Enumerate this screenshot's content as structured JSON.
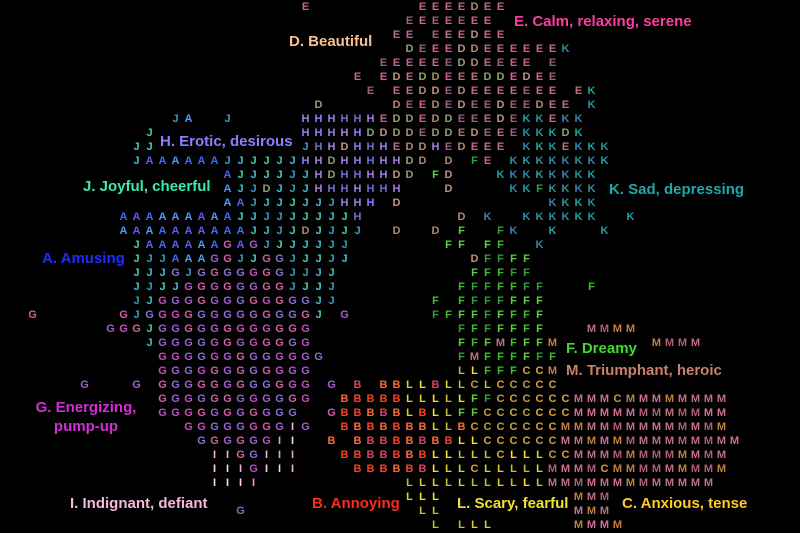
{
  "chart_data": {
    "type": "scatter",
    "title": "",
    "xlabel": "",
    "ylabel": "",
    "grid": false,
    "marker": "category letter",
    "categories": [
      {
        "letter": "A",
        "label": "A. Amusing",
        "color": "#1f2bff",
        "point_colors": [
          "#3a6cff",
          "#4a9cff",
          "#5a5aff"
        ],
        "center": [
          24,
          41
        ],
        "spread": [
          4,
          4
        ],
        "count": 40
      },
      {
        "letter": "B",
        "label": "B. Annoying",
        "color": "#ff2a1a",
        "point_colors": [
          "#ff4020",
          "#ff6a30",
          "#e04060"
        ],
        "center": [
          48,
          81
        ],
        "spread": [
          3.5,
          4
        ],
        "count": 45
      },
      {
        "letter": "C",
        "label": "C. Anxious, tense",
        "color": "#ffcc22",
        "point_colors": [
          "#d0b030",
          "#e0a030",
          "#c0a040"
        ],
        "center": [
          66,
          79
        ],
        "spread": [
          4,
          4
        ],
        "count": 40
      },
      {
        "letter": "D",
        "label": "D. Beautiful",
        "color": "#f7c08c",
        "point_colors": [
          "#b08a70",
          "#90a070",
          "#c09080"
        ],
        "center": [
          54,
          24
        ],
        "spread": [
          6,
          9
        ],
        "count": 55
      },
      {
        "letter": "E",
        "label": "E. Calm, relaxing, serene",
        "color": "#ff3d9e",
        "point_colors": [
          "#d06090",
          "#c07080",
          "#a06080"
        ],
        "center": [
          58,
          14
        ],
        "spread": [
          6,
          9
        ],
        "count": 90
      },
      {
        "letter": "F",
        "label": "F. Dreamy",
        "color": "#3ddd2a",
        "point_colors": [
          "#40c030",
          "#30a040",
          "#60d040"
        ],
        "center": [
          61,
          58
        ],
        "spread": [
          4,
          9
        ],
        "count": 70
      },
      {
        "letter": "G",
        "label": "G. Energizing, pump-up",
        "color": "#d12ed6",
        "point_colors": [
          "#a060d0",
          "#c050c0",
          "#8a70d0",
          "#d060a0"
        ],
        "center": [
          28,
          67
        ],
        "spread": [
          6,
          9
        ],
        "count": 160
      },
      {
        "letter": "H",
        "label": "H. Erotic, desirous",
        "color": "#8b80ff",
        "point_colors": [
          "#8a7fff",
          "#a080e0",
          "#7070d0"
        ],
        "center": [
          44,
          30
        ],
        "spread": [
          3,
          4
        ],
        "count": 40
      },
      {
        "letter": "I",
        "label": "I. Indignant, defiant",
        "color": "#f7b8dc",
        "point_colors": [
          "#f0b0e0",
          "#ffd0f0",
          "#e0a0d0"
        ],
        "center": [
          31,
          86
        ],
        "spread": [
          2.5,
          2.5
        ],
        "count": 18
      },
      {
        "letter": "J",
        "label": "J. Joyful, cheerful",
        "color": "#3ee8b2",
        "point_colors": [
          "#3ac0d0",
          "#30a0c0",
          "#40d0b0"
        ],
        "center": [
          31,
          45
        ],
        "spread": [
          6,
          5
        ],
        "count": 90
      },
      {
        "letter": "K",
        "label": "K. Sad, depressing",
        "color": "#20a8a8",
        "point_colors": [
          "#2a90a0",
          "#3a80b0",
          "#20a0a0"
        ],
        "center": [
          70,
          32
        ],
        "spread": [
          4,
          7
        ],
        "count": 55
      },
      {
        "letter": "L",
        "label": "L. Scary, fearful",
        "color": "#f2e030",
        "point_colors": [
          "#e0d020",
          "#c0c030",
          "#ffe020"
        ],
        "center": [
          59,
          85
        ],
        "spread": [
          3,
          3
        ],
        "count": 55
      },
      {
        "letter": "M",
        "label": "M. Triumphant, heroic",
        "color": "#c98070",
        "point_colors": [
          "#c07080",
          "#c08040",
          "#d07090",
          "#b06070"
        ],
        "center": [
          79,
          81
        ],
        "spread": [
          5,
          4
        ],
        "count": 110
      }
    ]
  }
}
